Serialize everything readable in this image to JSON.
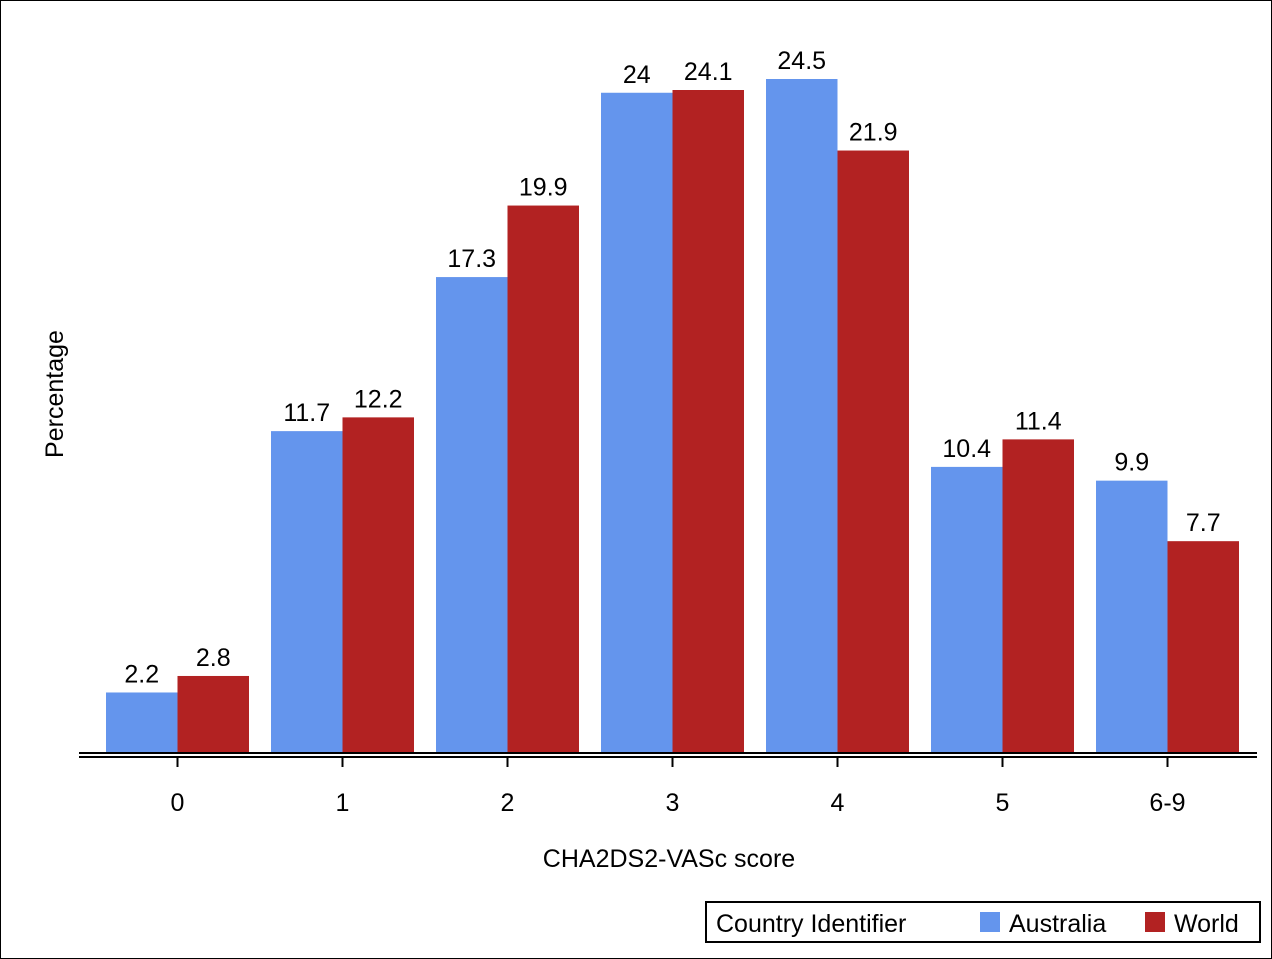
{
  "chart_data": {
    "type": "bar",
    "categories": [
      "0",
      "1",
      "2",
      "3",
      "4",
      "5",
      "6-9"
    ],
    "series": [
      {
        "name": "Australia",
        "color": "#6495ED",
        "values": [
          2.2,
          11.7,
          17.3,
          24,
          24.5,
          10.4,
          9.9
        ]
      },
      {
        "name": "World",
        "color": "#B22222",
        "values": [
          2.8,
          12.2,
          19.9,
          24.1,
          21.9,
          11.4,
          7.7
        ]
      }
    ],
    "data_labels": [
      [
        "2.2",
        "11.7",
        "17.3",
        "24",
        "24.5",
        "10.4",
        "9.9"
      ],
      [
        "2.8",
        "12.2",
        "19.9",
        "24.1",
        "21.9",
        "11.4",
        "7.7"
      ]
    ],
    "title": "",
    "xlabel": "CHA2DS2-VASc score",
    "ylabel": "Percentage",
    "ylim": [
      0,
      24.5
    ],
    "grid": false,
    "legend": {
      "title": "Country Identifier",
      "placement": "bottom-right"
    }
  }
}
